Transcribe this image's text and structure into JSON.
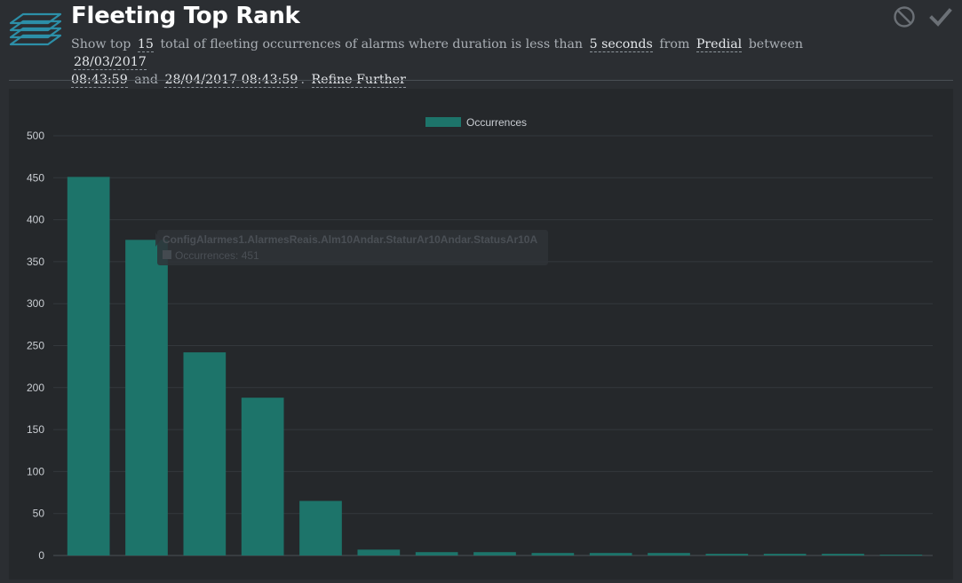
{
  "header": {
    "title": "Fleeting Top Rank",
    "subtitle": {
      "t1": "Show top",
      "top_n": "15",
      "t2": "total of fleeting occurrences of alarms where duration is less than",
      "duration": "5 seconds",
      "t3": "from",
      "source": "Predial",
      "t4": "between",
      "date_start_a": "28/03/2017",
      "date_start_b": "08:43:59",
      "t5": "and",
      "date_end": "28/04/2017 08:43:59",
      "t6": ".",
      "refine": "Refine Further"
    },
    "icons": [
      "layers-icon",
      "cancel-icon",
      "check-icon"
    ]
  },
  "colors": {
    "bar": "#1d746a",
    "panel": "#25282b",
    "grid": "#34383c"
  },
  "tooltip": {
    "title": "ConfigAlarmes1.AlarmesReais.Alm10Andar.StaturAr10Andar.StatusAr10A",
    "body": "Occurrences: 451"
  },
  "chart_data": {
    "type": "bar",
    "categories": [
      "",
      "",
      "",
      "",
      "",
      "",
      "",
      "",
      "",
      "",
      "",
      "",
      "",
      "",
      ""
    ],
    "series": [
      {
        "name": "Occurrences",
        "values": [
          451,
          376,
          242,
          188,
          65,
          7,
          4,
          4,
          3,
          3,
          3,
          2,
          2,
          2,
          1
        ]
      }
    ],
    "ylim": [
      0,
      500
    ],
    "yticks": [
      "0",
      "50",
      "100",
      "150",
      "200",
      "250",
      "300",
      "350",
      "400",
      "450",
      "500"
    ],
    "legend_position": "top",
    "grid": true
  }
}
